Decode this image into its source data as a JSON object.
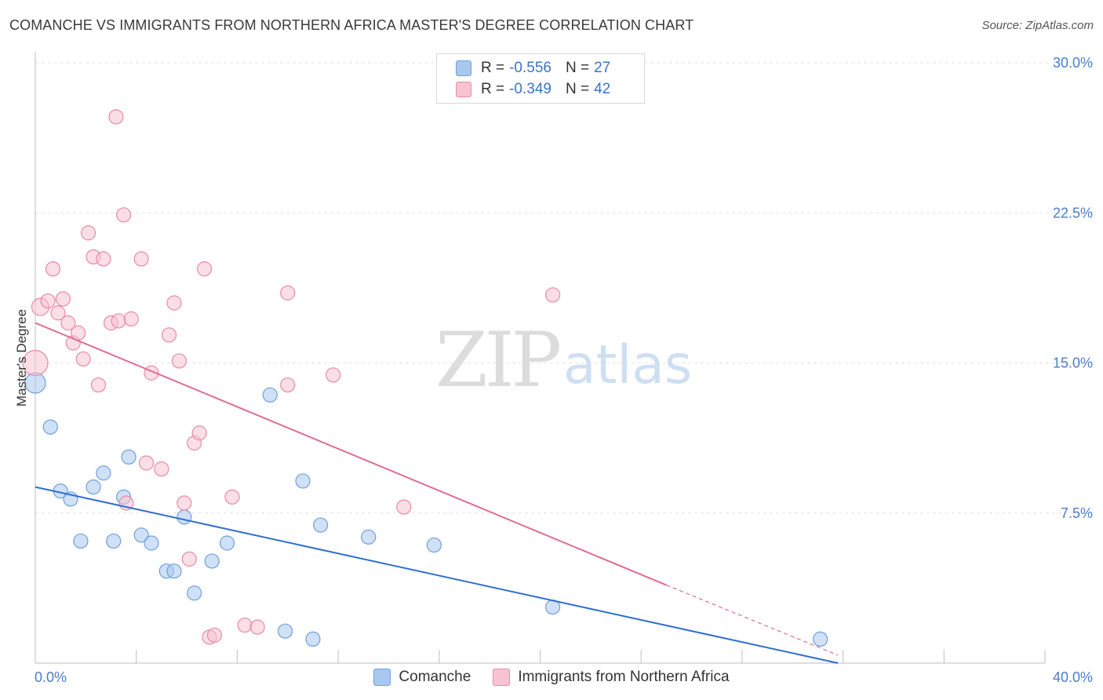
{
  "title": "COMANCHE VS IMMIGRANTS FROM NORTHERN AFRICA MASTER'S DEGREE CORRELATION CHART",
  "source": "Source: ZipAtlas.com",
  "watermark": {
    "zip": "ZIP",
    "atlas": "atlas"
  },
  "legend": {
    "r_label": "R =",
    "n_label": "N =",
    "rows": [
      {
        "r": "-0.556",
        "n": "27",
        "color": "#a9c8f0",
        "border": "#6e9fdc"
      },
      {
        "r": "-0.349",
        "n": "42",
        "color": "#f7c3d2",
        "border": "#e88aa6"
      }
    ]
  },
  "chart_data": {
    "type": "scatter",
    "title": "COMANCHE VS IMMIGRANTS FROM NORTHERN AFRICA MASTER'S DEGREE CORRELATION CHART",
    "xlabel": "",
    "ylabel": "Master's Degree",
    "xlim": [
      0,
      40
    ],
    "ylim": [
      0,
      30
    ],
    "x_tick_labels": [
      "0.0%",
      "40.0%"
    ],
    "y_ticks": [
      7.5,
      15.0,
      22.5,
      30.0
    ],
    "y_tick_labels": [
      "7.5%",
      "15.0%",
      "22.5%",
      "30.0%"
    ],
    "series": [
      {
        "name": "Comanche",
        "color": "#a9c8f0",
        "stroke": "#6e9fdc",
        "line_color": "#2f6fd0",
        "trend": {
          "x0": 0,
          "y0": 8.8,
          "x1": 31.8,
          "y1": 0.0
        },
        "points": [
          [
            0.0,
            14.0,
            13
          ],
          [
            0.6,
            11.8,
            9
          ],
          [
            1.0,
            8.6,
            9
          ],
          [
            1.4,
            8.2,
            9
          ],
          [
            1.8,
            6.1,
            9
          ],
          [
            2.3,
            8.8,
            9
          ],
          [
            2.7,
            9.5,
            9
          ],
          [
            3.1,
            6.1,
            9
          ],
          [
            3.5,
            8.3,
            9
          ],
          [
            3.7,
            10.3,
            9
          ],
          [
            4.2,
            6.4,
            9
          ],
          [
            4.6,
            6.0,
            9
          ],
          [
            5.2,
            4.6,
            9
          ],
          [
            5.5,
            4.6,
            9
          ],
          [
            5.9,
            7.3,
            9
          ],
          [
            6.3,
            3.5,
            9
          ],
          [
            7.0,
            5.1,
            9
          ],
          [
            7.6,
            6.0,
            9
          ],
          [
            9.3,
            13.4,
            9
          ],
          [
            9.9,
            1.6,
            9
          ],
          [
            10.6,
            9.1,
            9
          ],
          [
            11.0,
            1.2,
            9
          ],
          [
            11.3,
            6.9,
            9
          ],
          [
            13.2,
            6.3,
            9
          ],
          [
            15.8,
            5.9,
            9
          ],
          [
            20.5,
            2.8,
            9
          ],
          [
            31.1,
            1.2,
            9
          ]
        ]
      },
      {
        "name": "Immigrants from Northern Africa",
        "color": "#f7c3d2",
        "stroke": "#e88aa6",
        "line_color": "#e06b93",
        "trend": {
          "x0": 0,
          "y0": 17.0,
          "x1": 25.0,
          "y1": 3.9
        },
        "trend_dashed": {
          "x0": 25.0,
          "y0": 3.9,
          "x1": 31.8,
          "y1": 0.4
        },
        "points": [
          [
            0.0,
            15.0,
            16
          ],
          [
            0.2,
            17.8,
            11
          ],
          [
            0.5,
            18.1,
            9
          ],
          [
            0.7,
            19.7,
            9
          ],
          [
            0.9,
            17.5,
            9
          ],
          [
            1.1,
            18.2,
            9
          ],
          [
            1.3,
            17.0,
            9
          ],
          [
            1.5,
            16.0,
            9
          ],
          [
            1.7,
            16.5,
            9
          ],
          [
            1.9,
            15.2,
            9
          ],
          [
            2.1,
            21.5,
            9
          ],
          [
            2.3,
            20.3,
            9
          ],
          [
            2.5,
            13.9,
            9
          ],
          [
            2.7,
            20.2,
            9
          ],
          [
            3.0,
            17.0,
            9
          ],
          [
            3.2,
            27.3,
            9
          ],
          [
            3.3,
            17.1,
            9
          ],
          [
            3.5,
            22.4,
            9
          ],
          [
            3.6,
            8.0,
            9
          ],
          [
            3.8,
            17.2,
            9
          ],
          [
            4.2,
            20.2,
            9
          ],
          [
            4.4,
            10.0,
            9
          ],
          [
            4.6,
            14.5,
            9
          ],
          [
            5.0,
            9.7,
            9
          ],
          [
            5.3,
            16.4,
            9
          ],
          [
            5.5,
            18.0,
            9
          ],
          [
            5.7,
            15.1,
            9
          ],
          [
            5.9,
            8.0,
            9
          ],
          [
            6.1,
            5.2,
            9
          ],
          [
            6.3,
            11.0,
            9
          ],
          [
            6.5,
            11.5,
            9
          ],
          [
            6.7,
            19.7,
            9
          ],
          [
            6.9,
            1.3,
            9
          ],
          [
            7.1,
            1.4,
            9
          ],
          [
            7.8,
            8.3,
            9
          ],
          [
            8.3,
            1.9,
            9
          ],
          [
            8.8,
            1.8,
            9
          ],
          [
            10.0,
            18.5,
            9
          ],
          [
            10.0,
            13.9,
            9
          ],
          [
            11.8,
            14.4,
            9
          ],
          [
            14.6,
            7.8,
            9
          ],
          [
            20.5,
            18.4,
            9
          ]
        ]
      }
    ]
  }
}
